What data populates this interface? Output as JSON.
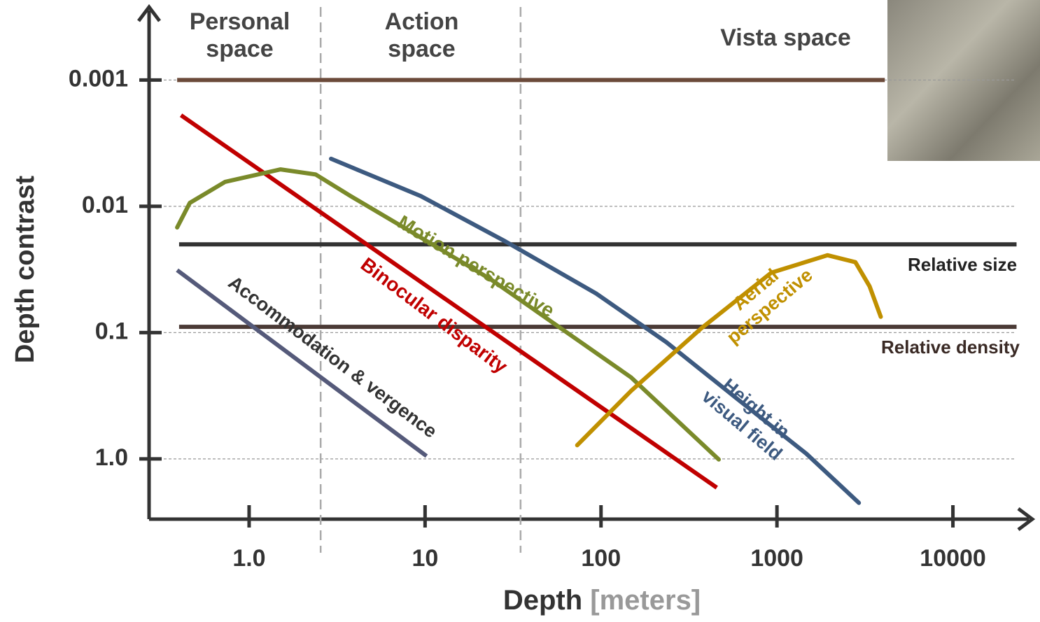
{
  "chart_data": {
    "type": "line",
    "xlabel": "Depth",
    "xlabel_unit": "[meters]",
    "ylabel": "Depth contrast",
    "x_scale": "log",
    "y_scale": "log",
    "y_inverted": true,
    "grid": true,
    "xlim": [
      0.27,
      27000
    ],
    "ylim": [
      0.0003,
      3
    ],
    "xticks": [
      {
        "value": 1,
        "label": "1.0"
      },
      10,
      100,
      1000,
      10000
    ],
    "yticks": [
      0.001,
      0.01,
      0.1,
      {
        "value": 1,
        "label": "1.0"
      }
    ],
    "regions": [
      {
        "label": "Personal space"
      },
      {
        "label": "Action space"
      },
      {
        "label": "Vista space"
      }
    ],
    "dividers": [
      2.55,
      34.9
    ],
    "series": [
      {
        "color": "#6b4a3a",
        "x": [
          0.39,
          4100
        ],
        "values": [
          0.001,
          0.001
        ]
      },
      {
        "name": "Relative size",
        "color": "#333333",
        "x": [
          0.4,
          23000
        ],
        "values": [
          0.02,
          0.02
        ]
      },
      {
        "name": "Relative density",
        "color": "#4a3a35",
        "x": [
          0.4,
          23000
        ],
        "values": [
          0.09,
          0.09
        ]
      },
      {
        "name": "Binocular disparity",
        "color": "#c00000",
        "x": [
          0.41,
          455
        ],
        "values": [
          0.0019,
          1.69
        ]
      },
      {
        "name": "Accommodation & vergence",
        "color": "#555a7a",
        "x": [
          0.39,
          10.2
        ],
        "values": [
          0.032,
          0.95
        ]
      },
      {
        "name": "Motion perspective",
        "color": "#7a8a2a",
        "x": [
          0.39,
          0.46,
          0.73,
          1.51,
          2.39,
          3.78,
          9.47,
          23.7,
          59.3,
          148,
          467
        ],
        "values": [
          0.0147,
          0.0094,
          0.0064,
          0.0051,
          0.0056,
          0.0083,
          0.0177,
          0.038,
          0.0927,
          0.226,
          1.01
        ]
      },
      {
        "name": "Height in visual field",
        "color": "#3d5a80",
        "x": [
          2.92,
          9.47,
          28.5,
          93.8,
          235,
          587,
          1470,
          2920
        ],
        "values": [
          0.0042,
          0.0083,
          0.0189,
          0.049,
          0.119,
          0.33,
          0.91,
          2.23
        ]
      },
      {
        "name": "Aerial perspective",
        "color": "#c09000",
        "x": [
          73.2,
          148,
          371,
          929,
          1940,
          2790,
          3360,
          3890
        ],
        "values": [
          0.78,
          0.29,
          0.0927,
          0.0335,
          0.0244,
          0.0277,
          0.043,
          0.075
        ]
      }
    ]
  }
}
